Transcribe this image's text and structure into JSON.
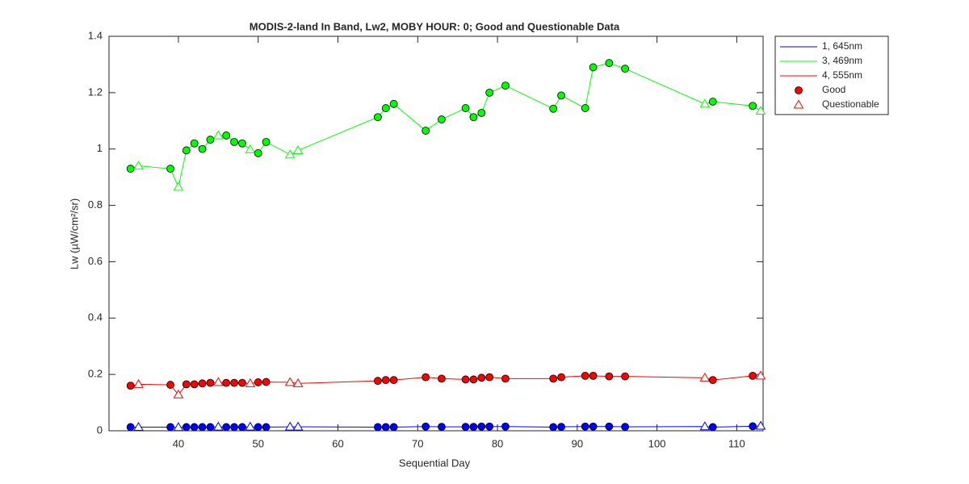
{
  "chart_data": {
    "type": "line",
    "title": "MODIS-2-land In Band,  Lw2, MOBY HOUR: 0;  Good and Questionable Data",
    "x_label": "Sequential Day",
    "y_label": "Lw (µW/cm²/sr)",
    "xlim": [
      31.3,
      113.3
    ],
    "ylim": [
      0,
      1.4
    ],
    "xticks": [
      40,
      50,
      60,
      70,
      80,
      90,
      100,
      110
    ],
    "yticks": [
      0,
      0.2,
      0.4,
      0.6,
      0.8,
      1,
      1.2,
      1.4
    ],
    "grid": false,
    "legend": "outside-upper-right",
    "x": [
      34,
      35,
      39,
      40,
      41,
      42,
      43,
      44,
      45,
      46,
      47,
      48,
      49,
      50,
      51,
      54,
      55,
      65,
      66,
      67,
      71,
      73,
      76,
      77,
      78,
      79,
      81,
      87,
      88,
      91,
      92,
      94,
      96,
      106,
      107,
      112,
      113
    ],
    "quality": [
      "Good",
      "Questionable",
      "Good",
      "Questionable",
      "Good",
      "Good",
      "Good",
      "Good",
      "Questionable",
      "Good",
      "Good",
      "Good",
      "Questionable",
      "Good",
      "Good",
      "Questionable",
      "Questionable",
      "Good",
      "Good",
      "Good",
      "Good",
      "Good",
      "Good",
      "Good",
      "Good",
      "Good",
      "Good",
      "Good",
      "Good",
      "Good",
      "Good",
      "Good",
      "Good",
      "Questionable",
      "Good",
      "Good",
      "Questionable"
    ],
    "markers": [
      {
        "name": "Good",
        "symbol": "circle"
      },
      {
        "name": "Questionable",
        "symbol": "triangle"
      }
    ],
    "legend_marker_color": "#ff0000",
    "series": [
      {
        "name": "1, 645nm",
        "color": "#0000ff",
        "values": [
          0.013,
          0.013,
          0.013,
          0.012,
          0.013,
          0.013,
          0.013,
          0.013,
          0.014,
          0.013,
          0.013,
          0.013,
          0.014,
          0.013,
          0.013,
          0.014,
          0.014,
          0.013,
          0.013,
          0.013,
          0.015,
          0.014,
          0.014,
          0.014,
          0.015,
          0.015,
          0.015,
          0.013,
          0.014,
          0.015,
          0.015,
          0.015,
          0.014,
          0.015,
          0.013,
          0.016,
          0.017
        ]
      },
      {
        "name": "3, 469nm",
        "color": "#00ff00",
        "values": [
          0.93,
          0.94,
          0.93,
          0.865,
          0.995,
          1.02,
          1.0,
          1.033,
          1.048,
          1.048,
          1.025,
          1.02,
          0.998,
          0.985,
          1.025,
          0.98,
          0.995,
          1.113,
          1.145,
          1.16,
          1.065,
          1.105,
          1.145,
          1.113,
          1.128,
          1.2,
          1.225,
          1.143,
          1.19,
          1.145,
          1.29,
          1.305,
          1.285,
          1.16,
          1.168,
          1.153,
          1.135
        ]
      },
      {
        "name": "4, 555nm",
        "color": "#ff0000",
        "values": [
          0.16,
          0.165,
          0.163,
          0.128,
          0.165,
          0.165,
          0.168,
          0.17,
          0.172,
          0.17,
          0.17,
          0.17,
          0.168,
          0.172,
          0.173,
          0.172,
          0.168,
          0.177,
          0.18,
          0.18,
          0.19,
          0.185,
          0.182,
          0.182,
          0.188,
          0.19,
          0.185,
          0.185,
          0.19,
          0.195,
          0.195,
          0.193,
          0.193,
          0.188,
          0.18,
          0.195,
          0.195
        ]
      }
    ]
  }
}
